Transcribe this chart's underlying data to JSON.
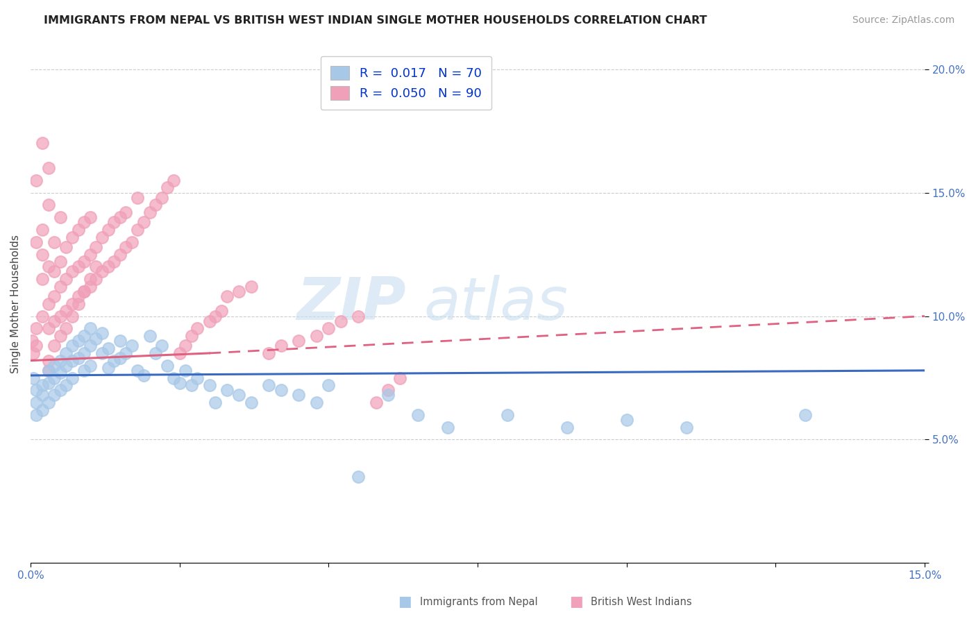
{
  "title": "IMMIGRANTS FROM NEPAL VS BRITISH WEST INDIAN SINGLE MOTHER HOUSEHOLDS CORRELATION CHART",
  "source": "Source: ZipAtlas.com",
  "ylabel": "Single Mother Households",
  "xlim": [
    0.0,
    0.15
  ],
  "ylim": [
    0.0,
    0.21
  ],
  "nepal_R": "0.017",
  "nepal_N": "70",
  "bwi_R": "0.050",
  "bwi_N": "90",
  "nepal_color": "#a8c8e8",
  "bwi_color": "#f0a0b8",
  "nepal_line_color": "#3a6abf",
  "bwi_line_color": "#e06080",
  "nepal_scatter_x": [
    0.0005,
    0.001,
    0.001,
    0.001,
    0.002,
    0.002,
    0.002,
    0.003,
    0.003,
    0.003,
    0.004,
    0.004,
    0.004,
    0.005,
    0.005,
    0.005,
    0.006,
    0.006,
    0.006,
    0.007,
    0.007,
    0.007,
    0.008,
    0.008,
    0.009,
    0.009,
    0.009,
    0.01,
    0.01,
    0.01,
    0.011,
    0.012,
    0.012,
    0.013,
    0.013,
    0.014,
    0.015,
    0.015,
    0.016,
    0.017,
    0.018,
    0.019,
    0.02,
    0.021,
    0.022,
    0.023,
    0.024,
    0.025,
    0.026,
    0.027,
    0.028,
    0.03,
    0.031,
    0.033,
    0.035,
    0.037,
    0.04,
    0.042,
    0.045,
    0.048,
    0.05,
    0.055,
    0.06,
    0.065,
    0.07,
    0.08,
    0.09,
    0.1,
    0.11,
    0.13
  ],
  "nepal_scatter_y": [
    0.075,
    0.07,
    0.065,
    0.06,
    0.072,
    0.068,
    0.062,
    0.078,
    0.073,
    0.065,
    0.08,
    0.075,
    0.068,
    0.082,
    0.077,
    0.07,
    0.085,
    0.08,
    0.072,
    0.088,
    0.082,
    0.075,
    0.09,
    0.083,
    0.092,
    0.085,
    0.078,
    0.095,
    0.088,
    0.08,
    0.091,
    0.093,
    0.085,
    0.087,
    0.079,
    0.082,
    0.09,
    0.083,
    0.085,
    0.088,
    0.078,
    0.076,
    0.092,
    0.085,
    0.088,
    0.08,
    0.075,
    0.073,
    0.078,
    0.072,
    0.075,
    0.072,
    0.065,
    0.07,
    0.068,
    0.065,
    0.072,
    0.07,
    0.068,
    0.065,
    0.072,
    0.035,
    0.068,
    0.06,
    0.055,
    0.06,
    0.055,
    0.058,
    0.055,
    0.06
  ],
  "bwi_scatter_x": [
    0.0003,
    0.0005,
    0.001,
    0.001,
    0.001,
    0.001,
    0.002,
    0.002,
    0.002,
    0.002,
    0.002,
    0.003,
    0.003,
    0.003,
    0.003,
    0.003,
    0.004,
    0.004,
    0.004,
    0.004,
    0.005,
    0.005,
    0.005,
    0.005,
    0.006,
    0.006,
    0.006,
    0.007,
    0.007,
    0.007,
    0.008,
    0.008,
    0.008,
    0.009,
    0.009,
    0.009,
    0.01,
    0.01,
    0.01,
    0.011,
    0.011,
    0.012,
    0.012,
    0.013,
    0.013,
    0.014,
    0.014,
    0.015,
    0.015,
    0.016,
    0.016,
    0.017,
    0.018,
    0.018,
    0.019,
    0.02,
    0.021,
    0.022,
    0.023,
    0.024,
    0.025,
    0.026,
    0.027,
    0.028,
    0.03,
    0.031,
    0.032,
    0.033,
    0.035,
    0.037,
    0.04,
    0.042,
    0.045,
    0.048,
    0.05,
    0.052,
    0.055,
    0.058,
    0.06,
    0.062,
    0.003,
    0.003,
    0.004,
    0.005,
    0.006,
    0.007,
    0.008,
    0.009,
    0.01,
    0.011
  ],
  "bwi_scatter_y": [
    0.09,
    0.085,
    0.095,
    0.088,
    0.13,
    0.155,
    0.1,
    0.115,
    0.125,
    0.135,
    0.17,
    0.095,
    0.105,
    0.12,
    0.145,
    0.16,
    0.098,
    0.108,
    0.118,
    0.13,
    0.1,
    0.112,
    0.122,
    0.14,
    0.102,
    0.115,
    0.128,
    0.105,
    0.118,
    0.132,
    0.108,
    0.12,
    0.135,
    0.11,
    0.122,
    0.138,
    0.112,
    0.125,
    0.14,
    0.115,
    0.128,
    0.118,
    0.132,
    0.12,
    0.135,
    0.122,
    0.138,
    0.125,
    0.14,
    0.128,
    0.142,
    0.13,
    0.135,
    0.148,
    0.138,
    0.142,
    0.145,
    0.148,
    0.152,
    0.155,
    0.085,
    0.088,
    0.092,
    0.095,
    0.098,
    0.1,
    0.102,
    0.108,
    0.11,
    0.112,
    0.085,
    0.088,
    0.09,
    0.092,
    0.095,
    0.098,
    0.1,
    0.065,
    0.07,
    0.075,
    0.078,
    0.082,
    0.088,
    0.092,
    0.095,
    0.1,
    0.105,
    0.11,
    0.115,
    0.12
  ]
}
